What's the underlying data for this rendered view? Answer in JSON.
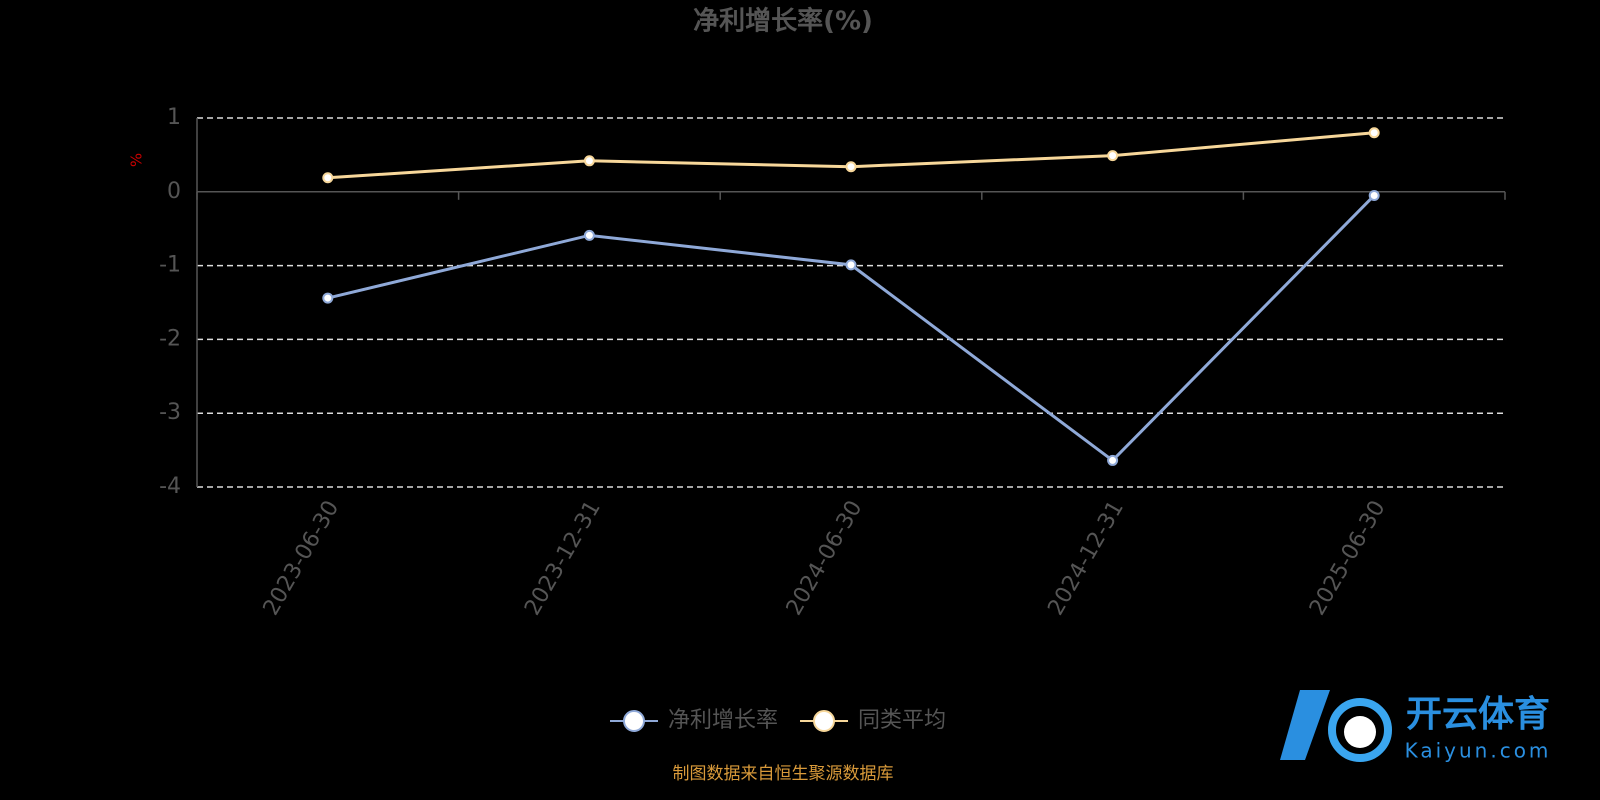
{
  "chart_data": {
    "type": "line",
    "title": "净利增长率(%)",
    "y_label": "%",
    "categories": [
      "2023-06-30",
      "2023-12-31",
      "2024-06-30",
      "2024-12-31",
      "2025-06-30"
    ],
    "series": [
      {
        "name": "净利增长率",
        "color": "#8fa9d8",
        "values": [
          -1.44,
          -0.59,
          -0.99,
          -3.64,
          -0.05
        ]
      },
      {
        "name": "同类平均",
        "color": "#f7d79a",
        "values": [
          0.19,
          0.42,
          0.34,
          0.49,
          0.8
        ]
      }
    ],
    "ylim": [
      -4,
      1
    ],
    "yticks": [
      -4,
      -3,
      -2,
      -1,
      0,
      1
    ],
    "grid": true,
    "source": "制图数据来自恒生聚源数据库"
  },
  "watermark": {
    "title": "开云体育",
    "subtitle": "Kaiyun.com"
  }
}
